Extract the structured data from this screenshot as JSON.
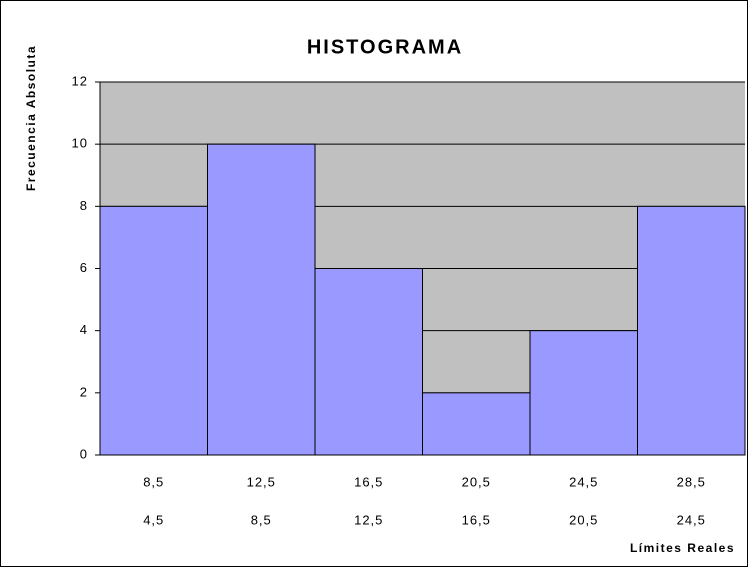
{
  "chart_data": {
    "type": "bar",
    "title": "HISTOGRAMA",
    "y_label": "Frecuencia Absoluta",
    "x_label": "Límites Reales",
    "categories": [
      "8,5",
      "12,5",
      "16,5",
      "20,5",
      "24,5",
      "28,5"
    ],
    "lower_limits": [
      "4,5",
      "8,5",
      "12,5",
      "16,5",
      "20,5",
      "24,5"
    ],
    "values": [
      8,
      10,
      6,
      2,
      4,
      8
    ],
    "color": "#9999ff",
    "background": "#c0c0c0",
    "ylim": [
      0,
      12
    ],
    "yticks": [
      0,
      2,
      4,
      6,
      8,
      10,
      12
    ],
    "grid": true
  }
}
